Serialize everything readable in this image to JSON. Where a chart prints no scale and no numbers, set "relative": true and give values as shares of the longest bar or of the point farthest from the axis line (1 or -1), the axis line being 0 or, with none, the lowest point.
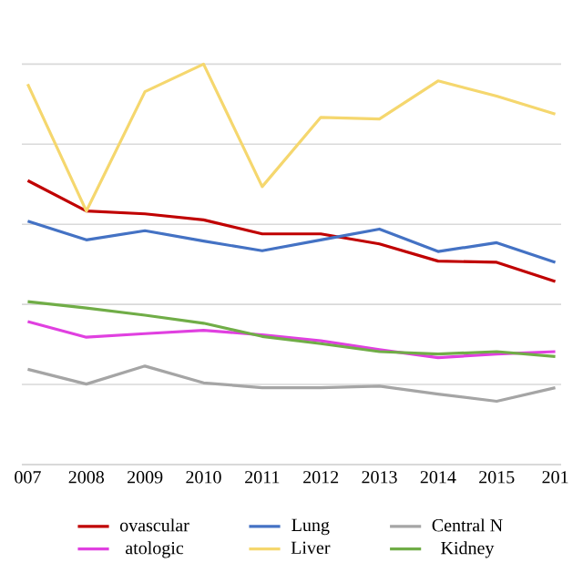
{
  "chart_data": {
    "type": "line",
    "relative": true,
    "grid": "y",
    "legend": "bottom",
    "marker": "none",
    "line_style": "solid",
    "categories": [
      "007",
      "2008",
      "2009",
      "2010",
      "2011",
      "2012",
      "2013",
      "2014",
      "2015",
      "201"
    ],
    "series": [
      {
        "name": "ovascular",
        "color": "#c00000",
        "values": [
          0.709,
          0.633,
          0.626,
          0.611,
          0.576,
          0.576,
          0.551,
          0.508,
          0.505,
          0.457
        ]
      },
      {
        "name": "Lung",
        "color": "#4472c4",
        "values": [
          0.608,
          0.561,
          0.584,
          0.558,
          0.534,
          0.561,
          0.588,
          0.532,
          0.554,
          0.505
        ]
      },
      {
        "name": "Central N",
        "color": "#a5a5a5",
        "values": [
          0.238,
          0.201,
          0.246,
          0.204,
          0.192,
          0.192,
          0.196,
          0.176,
          0.158,
          0.192
        ]
      },
      {
        "name": "atologic",
        "color": "#e040e0",
        "values": [
          0.357,
          0.318,
          0.327,
          0.335,
          0.324,
          0.309,
          0.287,
          0.267,
          0.276,
          0.282
        ]
      },
      {
        "name": "Liver",
        "color": "#f5d76e",
        "values": [
          0.95,
          0.633,
          0.931,
          1.0,
          0.694,
          0.867,
          0.863,
          0.958,
          0.92,
          0.875
        ]
      },
      {
        "name": "Kidney",
        "color": "#70ad47",
        "values": [
          0.407,
          0.391,
          0.373,
          0.353,
          0.32,
          0.302,
          0.282,
          0.276,
          0.282,
          0.27
        ]
      }
    ]
  }
}
